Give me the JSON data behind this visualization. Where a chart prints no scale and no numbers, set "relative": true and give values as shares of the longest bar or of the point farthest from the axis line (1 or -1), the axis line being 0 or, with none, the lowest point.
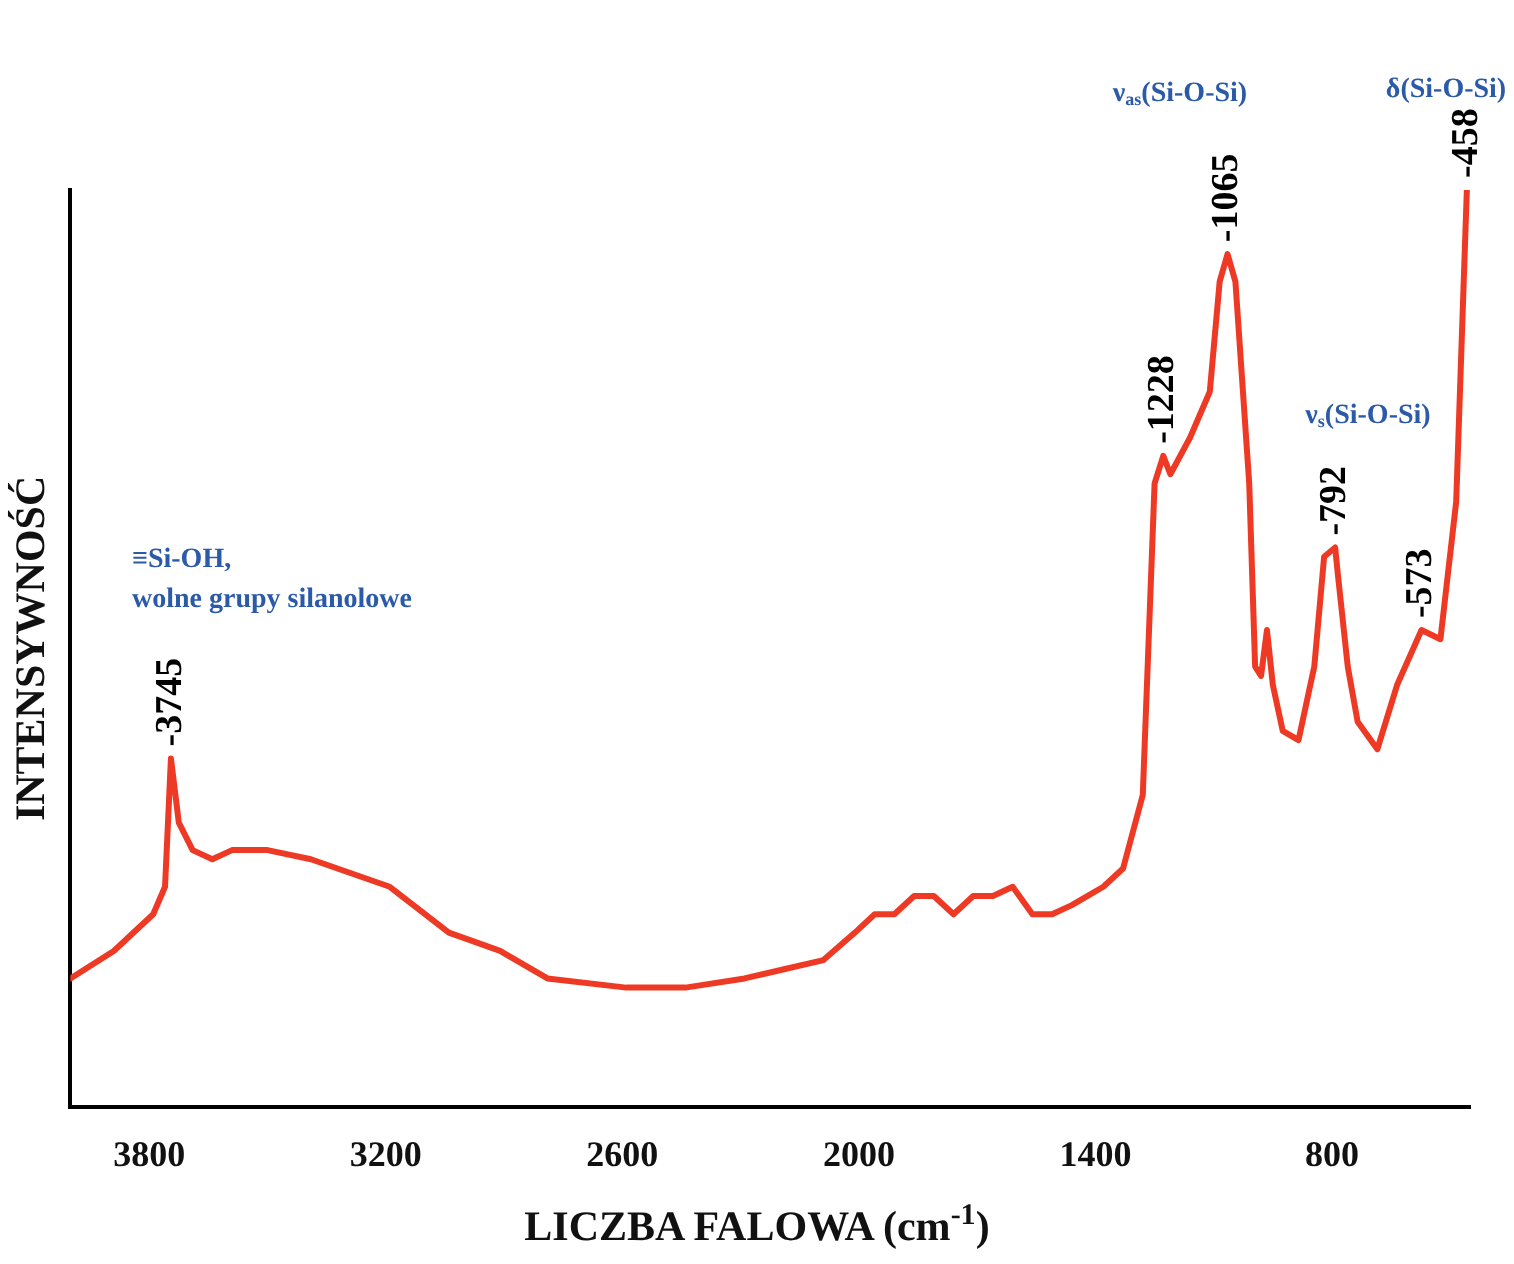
{
  "chart_data": {
    "type": "line",
    "relative": true,
    "xlabel": "LICZBA FALOWA (cm$^{-1}$)",
    "ylabel": "INTENSYWNOŚĆ",
    "xlim": [
      4000,
      450
    ],
    "xticks": [
      3800,
      3200,
      2600,
      2000,
      1400,
      800
    ],
    "grid": false,
    "legend": false,
    "marker": "none",
    "line_style": "solid",
    "series": [
      {
        "color": "#ee3a24",
        "x": [
          4000,
          3890,
          3790,
          3760,
          3745,
          3725,
          3690,
          3640,
          3590,
          3500,
          3390,
          3190,
          3040,
          2910,
          2790,
          2590,
          2440,
          2290,
          2190,
          2090,
          2010,
          1960,
          1910,
          1860,
          1810,
          1760,
          1710,
          1660,
          1610,
          1560,
          1510,
          1460,
          1380,
          1330,
          1280,
          1250,
          1228,
          1210,
          1160,
          1110,
          1085,
          1065,
          1045,
          1010,
          995,
          980,
          965,
          950,
          925,
          885,
          845,
          820,
          792,
          785,
          760,
          735,
          685,
          635,
          573,
          525,
          485,
          458
        ],
        "values": [
          0.14,
          0.17,
          0.21,
          0.24,
          0.38,
          0.31,
          0.28,
          0.27,
          0.28,
          0.28,
          0.27,
          0.24,
          0.19,
          0.17,
          0.14,
          0.13,
          0.13,
          0.14,
          0.15,
          0.16,
          0.19,
          0.21,
          0.21,
          0.23,
          0.23,
          0.21,
          0.23,
          0.23,
          0.24,
          0.21,
          0.21,
          0.22,
          0.24,
          0.26,
          0.34,
          0.68,
          0.71,
          0.69,
          0.73,
          0.78,
          0.9,
          0.93,
          0.9,
          0.68,
          0.48,
          0.47,
          0.52,
          0.46,
          0.41,
          0.4,
          0.48,
          0.6,
          0.61,
          0.58,
          0.48,
          0.42,
          0.39,
          0.46,
          0.52,
          0.51,
          0.66,
          1
        ]
      }
    ],
    "annotations": [
      {
        "text": "-3745",
        "x": 3745,
        "y": 0.38
      },
      {
        "text": "-1228",
        "x": 1228,
        "y": 0.71
      },
      {
        "text": "-1065",
        "x": 1065,
        "y": 0.93
      },
      {
        "text": "-792",
        "x": 792,
        "y": 0.61
      },
      {
        "text": "-573",
        "x": 573,
        "y": 0.52
      },
      {
        "text": "-458",
        "x": 458,
        "y": 1
      },
      "≡Si-OH,\nwolne grupy silanolowe",
      "ν$_{as}$(Si-O-Si)",
      "ν$_{s}$(Si-O-Si)",
      "δ(Si-O-Si)"
    ]
  }
}
